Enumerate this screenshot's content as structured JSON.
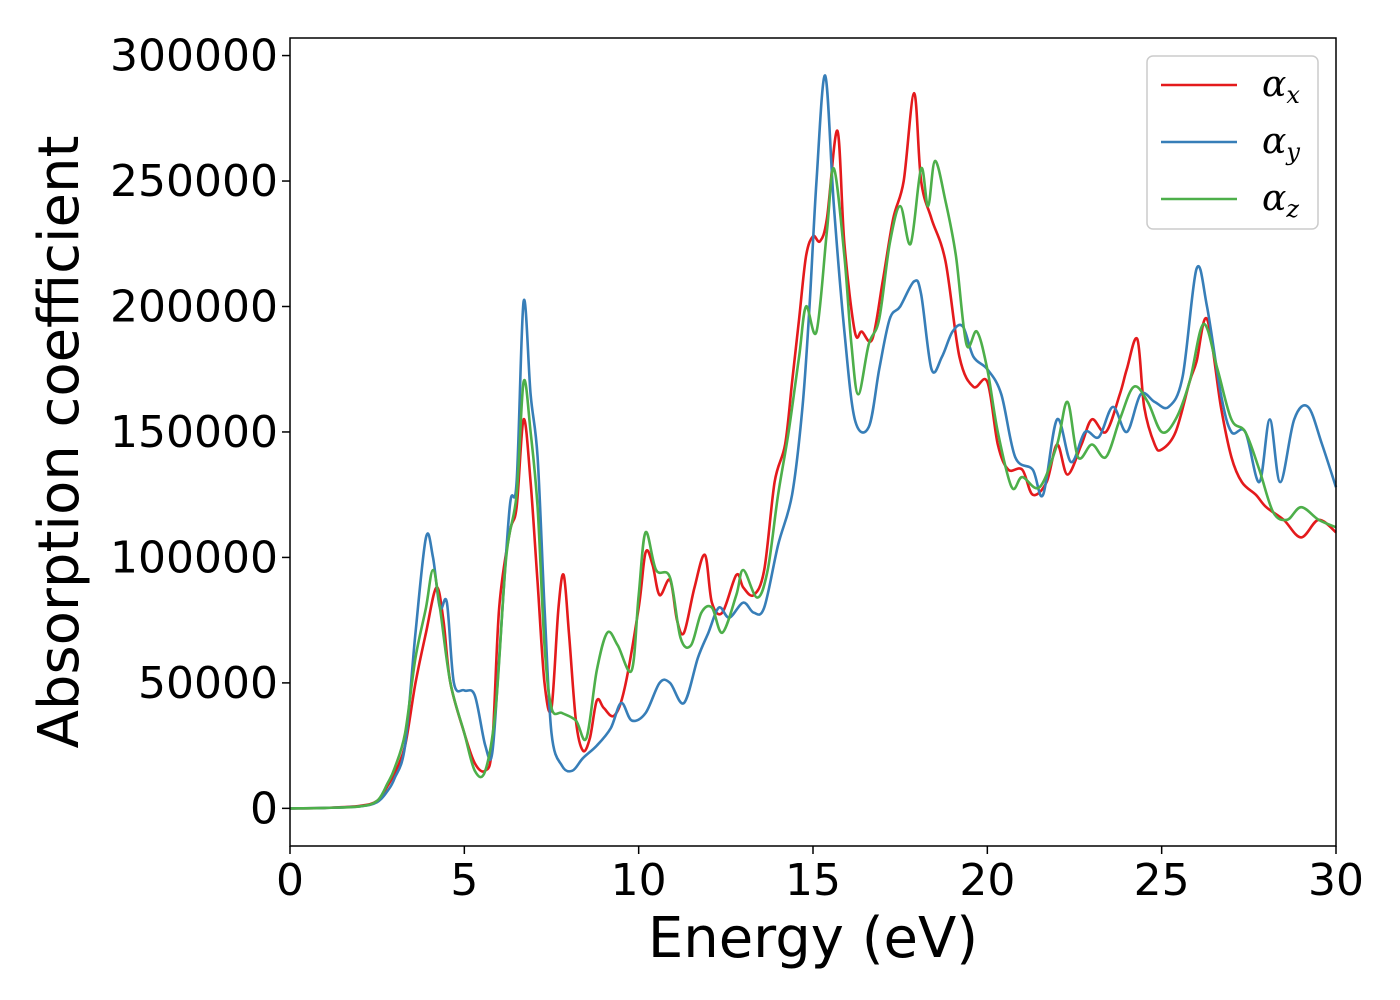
{
  "chart_data": {
    "type": "line",
    "title": "",
    "xlabel": "Energy (eV)",
    "ylabel": "Absorption coefficient",
    "xlim": [
      0,
      30
    ],
    "ylim": [
      -15000,
      307000
    ],
    "xticks": [
      0,
      5,
      10,
      15,
      20,
      25,
      30
    ],
    "xtick_labels": [
      "0",
      "5",
      "10",
      "15",
      "20",
      "25",
      "30"
    ],
    "yticks": [
      0,
      50000,
      100000,
      150000,
      200000,
      250000,
      300000
    ],
    "ytick_labels": [
      "0",
      "50000",
      "100000",
      "150000",
      "200000",
      "250000",
      "300000"
    ],
    "grid": false,
    "legend_position": "top-right",
    "series": [
      {
        "name": "αx",
        "base": "α",
        "sub": "x",
        "color": "#e41a1c",
        "points": [
          [
            0,
            0
          ],
          [
            1,
            200
          ],
          [
            2,
            1000
          ],
          [
            2.5,
            3000
          ],
          [
            2.8,
            9000
          ],
          [
            3,
            14000
          ],
          [
            3.3,
            25000
          ],
          [
            3.6,
            50000
          ],
          [
            3.9,
            70000
          ],
          [
            4.2,
            88000
          ],
          [
            4.4,
            75000
          ],
          [
            4.6,
            50000
          ],
          [
            5,
            30000
          ],
          [
            5.3,
            18000
          ],
          [
            5.6,
            15000
          ],
          [
            5.8,
            25000
          ],
          [
            6,
            80000
          ],
          [
            6.3,
            110000
          ],
          [
            6.5,
            120000
          ],
          [
            6.7,
            155000
          ],
          [
            6.9,
            130000
          ],
          [
            7.1,
            90000
          ],
          [
            7.3,
            50000
          ],
          [
            7.5,
            40000
          ],
          [
            7.7,
            80000
          ],
          [
            7.85,
            93000
          ],
          [
            8,
            70000
          ],
          [
            8.2,
            35000
          ],
          [
            8.4,
            23000
          ],
          [
            8.6,
            28000
          ],
          [
            8.8,
            43000
          ],
          [
            9,
            40000
          ],
          [
            9.3,
            37000
          ],
          [
            9.6,
            48000
          ],
          [
            10,
            80000
          ],
          [
            10.2,
            102000
          ],
          [
            10.4,
            97000
          ],
          [
            10.6,
            85000
          ],
          [
            10.9,
            91000
          ],
          [
            11.1,
            75000
          ],
          [
            11.3,
            70000
          ],
          [
            11.6,
            88000
          ],
          [
            11.9,
            101000
          ],
          [
            12.1,
            82000
          ],
          [
            12.4,
            78000
          ],
          [
            12.8,
            93000
          ],
          [
            13,
            88000
          ],
          [
            13.3,
            85000
          ],
          [
            13.6,
            95000
          ],
          [
            13.9,
            130000
          ],
          [
            14.2,
            145000
          ],
          [
            14.4,
            170000
          ],
          [
            14.6,
            195000
          ],
          [
            14.8,
            220000
          ],
          [
            15,
            228000
          ],
          [
            15.2,
            226000
          ],
          [
            15.4,
            235000
          ],
          [
            15.7,
            270000
          ],
          [
            15.9,
            225000
          ],
          [
            16.2,
            190000
          ],
          [
            16.4,
            190000
          ],
          [
            16.7,
            187000
          ],
          [
            17,
            210000
          ],
          [
            17.3,
            235000
          ],
          [
            17.6,
            250000
          ],
          [
            17.9,
            285000
          ],
          [
            18.1,
            250000
          ],
          [
            18.4,
            235000
          ],
          [
            18.8,
            218000
          ],
          [
            19.2,
            180000
          ],
          [
            19.6,
            168000
          ],
          [
            20,
            170000
          ],
          [
            20.3,
            145000
          ],
          [
            20.6,
            135000
          ],
          [
            21,
            135000
          ],
          [
            21.3,
            125000
          ],
          [
            21.7,
            130000
          ],
          [
            22,
            145000
          ],
          [
            22.3,
            133000
          ],
          [
            22.7,
            145000
          ],
          [
            23,
            155000
          ],
          [
            23.4,
            150000
          ],
          [
            23.8,
            165000
          ],
          [
            24,
            175000
          ],
          [
            24.3,
            187000
          ],
          [
            24.5,
            160000
          ],
          [
            24.8,
            145000
          ],
          [
            25,
            143000
          ],
          [
            25.4,
            150000
          ],
          [
            25.8,
            170000
          ],
          [
            26,
            178000
          ],
          [
            26.3,
            195000
          ],
          [
            26.7,
            160000
          ],
          [
            27,
            140000
          ],
          [
            27.3,
            130000
          ],
          [
            27.7,
            125000
          ],
          [
            28,
            120000
          ],
          [
            28.5,
            115000
          ],
          [
            29,
            108000
          ],
          [
            29.5,
            115000
          ],
          [
            30,
            110000
          ]
        ]
      },
      {
        "name": "αy",
        "base": "α",
        "sub": "y",
        "color": "#377eb8",
        "points": [
          [
            0,
            0
          ],
          [
            1,
            200
          ],
          [
            2,
            800
          ],
          [
            2.5,
            2500
          ],
          [
            2.8,
            7000
          ],
          [
            3,
            12000
          ],
          [
            3.3,
            25000
          ],
          [
            3.6,
            70000
          ],
          [
            3.9,
            108000
          ],
          [
            4.1,
            100000
          ],
          [
            4.3,
            80000
          ],
          [
            4.5,
            82000
          ],
          [
            4.7,
            50000
          ],
          [
            5,
            47000
          ],
          [
            5.3,
            45000
          ],
          [
            5.6,
            25000
          ],
          [
            5.8,
            22000
          ],
          [
            6,
            60000
          ],
          [
            6.3,
            120000
          ],
          [
            6.5,
            130000
          ],
          [
            6.7,
            202000
          ],
          [
            6.9,
            165000
          ],
          [
            7.1,
            140000
          ],
          [
            7.3,
            80000
          ],
          [
            7.5,
            30000
          ],
          [
            7.8,
            17000
          ],
          [
            8.1,
            15000
          ],
          [
            8.4,
            20000
          ],
          [
            8.8,
            25000
          ],
          [
            9.2,
            32000
          ],
          [
            9.5,
            42000
          ],
          [
            9.8,
            35000
          ],
          [
            10.2,
            38000
          ],
          [
            10.6,
            50000
          ],
          [
            10.9,
            50000
          ],
          [
            11.3,
            42000
          ],
          [
            11.7,
            60000
          ],
          [
            12,
            70000
          ],
          [
            12.3,
            80000
          ],
          [
            12.6,
            76000
          ],
          [
            13,
            82000
          ],
          [
            13.3,
            78000
          ],
          [
            13.6,
            80000
          ],
          [
            14,
            105000
          ],
          [
            14.4,
            125000
          ],
          [
            14.7,
            160000
          ],
          [
            14.9,
            200000
          ],
          [
            15.1,
            250000
          ],
          [
            15.35,
            292000
          ],
          [
            15.6,
            240000
          ],
          [
            15.9,
            190000
          ],
          [
            16.2,
            155000
          ],
          [
            16.6,
            152000
          ],
          [
            16.9,
            175000
          ],
          [
            17.2,
            195000
          ],
          [
            17.5,
            200000
          ],
          [
            17.9,
            210000
          ],
          [
            18.1,
            205000
          ],
          [
            18.4,
            175000
          ],
          [
            18.7,
            180000
          ],
          [
            19,
            190000
          ],
          [
            19.3,
            192000
          ],
          [
            19.6,
            180000
          ],
          [
            20,
            175000
          ],
          [
            20.4,
            165000
          ],
          [
            20.8,
            140000
          ],
          [
            21.3,
            135000
          ],
          [
            21.6,
            125000
          ],
          [
            22,
            155000
          ],
          [
            22.4,
            138000
          ],
          [
            22.8,
            150000
          ],
          [
            23.2,
            148000
          ],
          [
            23.6,
            160000
          ],
          [
            24,
            150000
          ],
          [
            24.4,
            165000
          ],
          [
            24.8,
            162000
          ],
          [
            25.2,
            160000
          ],
          [
            25.6,
            172000
          ],
          [
            26,
            215000
          ],
          [
            26.3,
            200000
          ],
          [
            26.7,
            165000
          ],
          [
            27,
            150000
          ],
          [
            27.4,
            150000
          ],
          [
            27.8,
            130000
          ],
          [
            28.1,
            155000
          ],
          [
            28.4,
            130000
          ],
          [
            28.8,
            155000
          ],
          [
            29.2,
            160000
          ],
          [
            29.6,
            145000
          ],
          [
            30,
            128000
          ]
        ]
      },
      {
        "name": "αz",
        "base": "α",
        "sub": "z",
        "color": "#4daf4a",
        "points": [
          [
            0,
            0
          ],
          [
            1,
            200
          ],
          [
            2,
            800
          ],
          [
            2.5,
            3000
          ],
          [
            2.8,
            10000
          ],
          [
            3,
            16000
          ],
          [
            3.3,
            30000
          ],
          [
            3.6,
            60000
          ],
          [
            3.9,
            80000
          ],
          [
            4.1,
            95000
          ],
          [
            4.3,
            80000
          ],
          [
            4.6,
            50000
          ],
          [
            5,
            30000
          ],
          [
            5.3,
            15000
          ],
          [
            5.6,
            15000
          ],
          [
            5.9,
            40000
          ],
          [
            6.2,
            100000
          ],
          [
            6.5,
            125000
          ],
          [
            6.7,
            170000
          ],
          [
            6.9,
            150000
          ],
          [
            7.1,
            120000
          ],
          [
            7.3,
            65000
          ],
          [
            7.5,
            40000
          ],
          [
            7.8,
            38000
          ],
          [
            8.2,
            35000
          ],
          [
            8.5,
            28000
          ],
          [
            8.8,
            55000
          ],
          [
            9.1,
            70000
          ],
          [
            9.4,
            65000
          ],
          [
            9.8,
            55000
          ],
          [
            10,
            85000
          ],
          [
            10.2,
            110000
          ],
          [
            10.5,
            95000
          ],
          [
            10.9,
            92000
          ],
          [
            11.2,
            68000
          ],
          [
            11.5,
            65000
          ],
          [
            11.8,
            78000
          ],
          [
            12.1,
            80000
          ],
          [
            12.4,
            70000
          ],
          [
            12.8,
            85000
          ],
          [
            13,
            95000
          ],
          [
            13.4,
            84000
          ],
          [
            13.7,
            95000
          ],
          [
            14,
            125000
          ],
          [
            14.3,
            150000
          ],
          [
            14.6,
            180000
          ],
          [
            14.8,
            200000
          ],
          [
            15.1,
            190000
          ],
          [
            15.4,
            230000
          ],
          [
            15.6,
            255000
          ],
          [
            15.9,
            220000
          ],
          [
            16.1,
            185000
          ],
          [
            16.3,
            165000
          ],
          [
            16.6,
            185000
          ],
          [
            16.9,
            195000
          ],
          [
            17.2,
            225000
          ],
          [
            17.5,
            240000
          ],
          [
            17.8,
            225000
          ],
          [
            18.1,
            255000
          ],
          [
            18.3,
            240000
          ],
          [
            18.5,
            258000
          ],
          [
            18.8,
            242000
          ],
          [
            19.1,
            220000
          ],
          [
            19.4,
            185000
          ],
          [
            19.7,
            190000
          ],
          [
            20,
            175000
          ],
          [
            20.3,
            150000
          ],
          [
            20.7,
            128000
          ],
          [
            21,
            132000
          ],
          [
            21.5,
            128000
          ],
          [
            22,
            145000
          ],
          [
            22.3,
            162000
          ],
          [
            22.6,
            140000
          ],
          [
            23,
            145000
          ],
          [
            23.4,
            140000
          ],
          [
            23.8,
            155000
          ],
          [
            24.2,
            168000
          ],
          [
            24.6,
            162000
          ],
          [
            25,
            150000
          ],
          [
            25.4,
            155000
          ],
          [
            25.8,
            170000
          ],
          [
            26.2,
            193000
          ],
          [
            26.6,
            175000
          ],
          [
            27,
            155000
          ],
          [
            27.4,
            150000
          ],
          [
            27.8,
            135000
          ],
          [
            28.2,
            118000
          ],
          [
            28.6,
            115000
          ],
          [
            29,
            120000
          ],
          [
            29.5,
            115000
          ],
          [
            30,
            112000
          ]
        ]
      }
    ]
  }
}
